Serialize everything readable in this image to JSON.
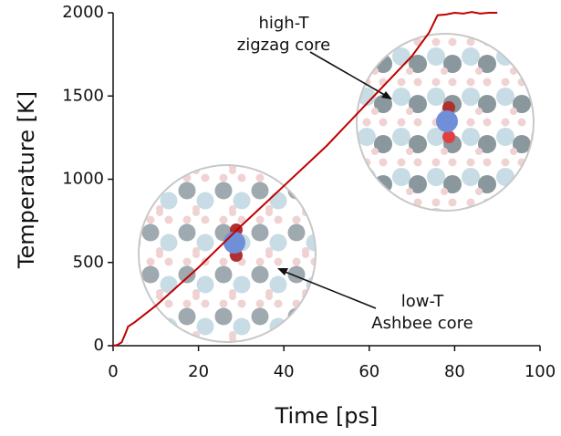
{
  "chart_data": {
    "type": "line",
    "xlabel": "Time [ps]",
    "ylabel": "Temperature [K]",
    "xlim": [
      0,
      100
    ],
    "xticks": [
      0,
      20,
      40,
      60,
      80,
      100
    ],
    "ylim": [
      0,
      2000
    ],
    "yticks": [
      0,
      500,
      1000,
      1500,
      2000
    ],
    "grid": false,
    "series": [
      {
        "color": "#c00000",
        "x": [
          0,
          1,
          2,
          3,
          3.5,
          5,
          10,
          20,
          30,
          40,
          50,
          60,
          70,
          74,
          76,
          78,
          80,
          82,
          84,
          86,
          88,
          90
        ],
        "values": [
          0,
          5,
          20,
          80,
          115,
          140,
          240,
          470,
          720,
          960,
          1200,
          1470,
          1740,
          1880,
          1985,
          1990,
          2000,
          1995,
          2005,
          1995,
          2000,
          2000
        ]
      }
    ],
    "annotations": [
      {
        "lines": [
          "high-T",
          "zigzag core"
        ]
      },
      {
        "lines": [
          "low-T",
          "Ashbee core"
        ]
      }
    ]
  }
}
